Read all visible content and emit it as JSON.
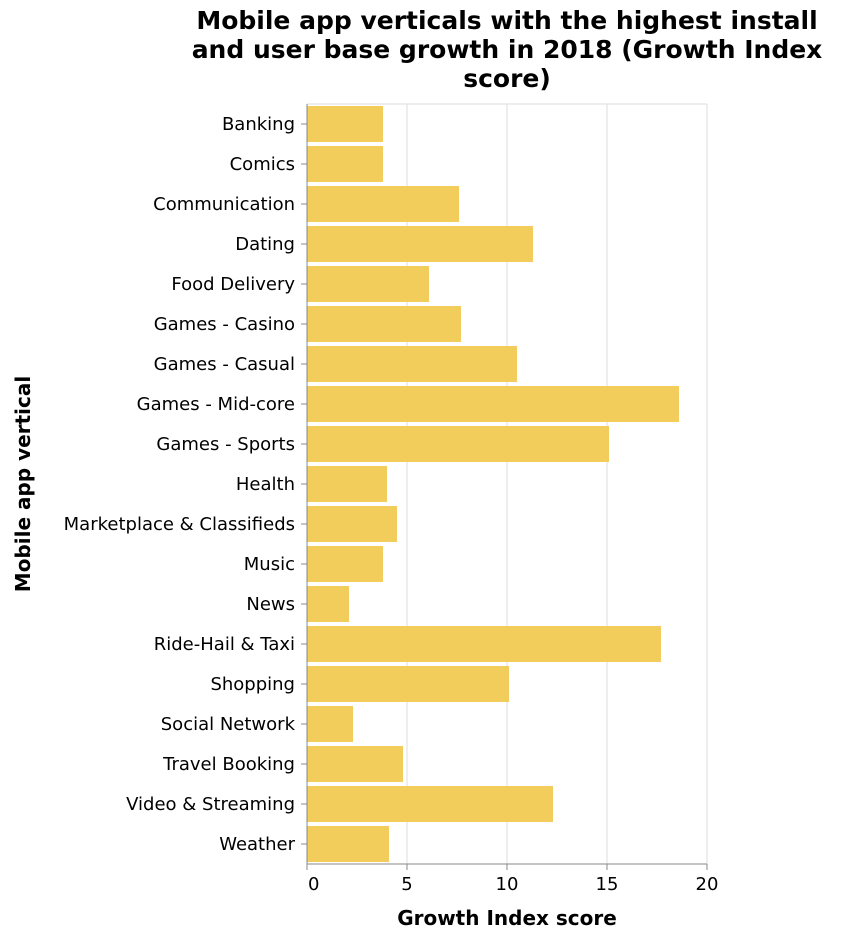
{
  "chart_data": {
    "type": "bar",
    "orientation": "horizontal",
    "title_lines": [
      "Mobile app verticals with the highest install",
      "and user base growth in 2018 (Growth Index",
      "score)"
    ],
    "xlabel": "Growth Index score",
    "ylabel": "Mobile app vertical",
    "xlim": [
      0,
      20
    ],
    "x_ticks": [
      0,
      5,
      10,
      15,
      20
    ],
    "grid": true,
    "bar_color": "#f2cd5c",
    "categories": [
      "Banking",
      "Comics",
      "Communication",
      "Dating",
      "Food Delivery",
      "Games - Casino",
      "Games - Casual",
      "Games - Mid-core",
      "Games - Sports",
      "Health",
      "Marketplace & Classifieds",
      "Music",
      "News",
      "Ride-Hail & Taxi",
      "Shopping",
      "Social Network",
      "Travel Booking",
      "Video & Streaming",
      "Weather"
    ],
    "values": [
      3.8,
      3.8,
      7.6,
      11.3,
      6.1,
      7.7,
      10.5,
      18.6,
      15.1,
      4.0,
      4.5,
      3.8,
      2.1,
      17.7,
      10.1,
      2.3,
      4.8,
      12.3,
      4.1
    ]
  }
}
